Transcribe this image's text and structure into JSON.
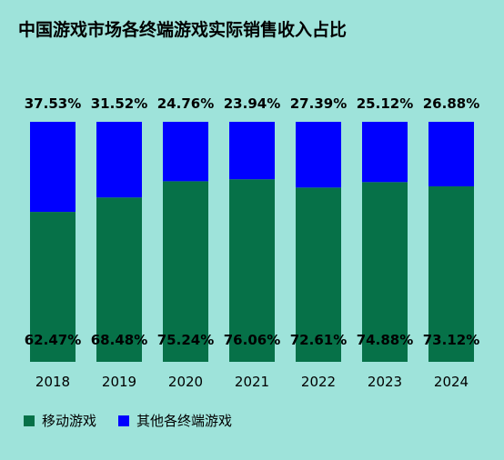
{
  "colors": {
    "background": "#9ee3da",
    "mobile": "#067148",
    "other": "#0000ff",
    "text": "#000000"
  },
  "chart_data": {
    "type": "bar",
    "stacked": true,
    "title": "中国游戏市场各终端游戏实际销售收入占比",
    "categories": [
      "2018",
      "2019",
      "2020",
      "2021",
      "2022",
      "2023",
      "2024"
    ],
    "series": [
      {
        "name": "移动游戏",
        "values": [
          62.47,
          68.48,
          75.24,
          76.06,
          72.61,
          74.88,
          73.12
        ],
        "labels": [
          "62.47%",
          "68.48%",
          "75.24%",
          "76.06%",
          "72.61%",
          "74.88%",
          "73.12%"
        ]
      },
      {
        "name": "其他各终端游戏",
        "values": [
          37.53,
          31.52,
          24.76,
          23.94,
          27.39,
          25.12,
          26.88
        ],
        "labels": [
          "37.53%",
          "31.52%",
          "24.76%",
          "23.94%",
          "27.39%",
          "25.12%",
          "26.88%"
        ]
      }
    ],
    "ylim": [
      0,
      100
    ],
    "xlabel": "",
    "ylabel": "",
    "grid": false,
    "legend_position": "bottom-left"
  }
}
